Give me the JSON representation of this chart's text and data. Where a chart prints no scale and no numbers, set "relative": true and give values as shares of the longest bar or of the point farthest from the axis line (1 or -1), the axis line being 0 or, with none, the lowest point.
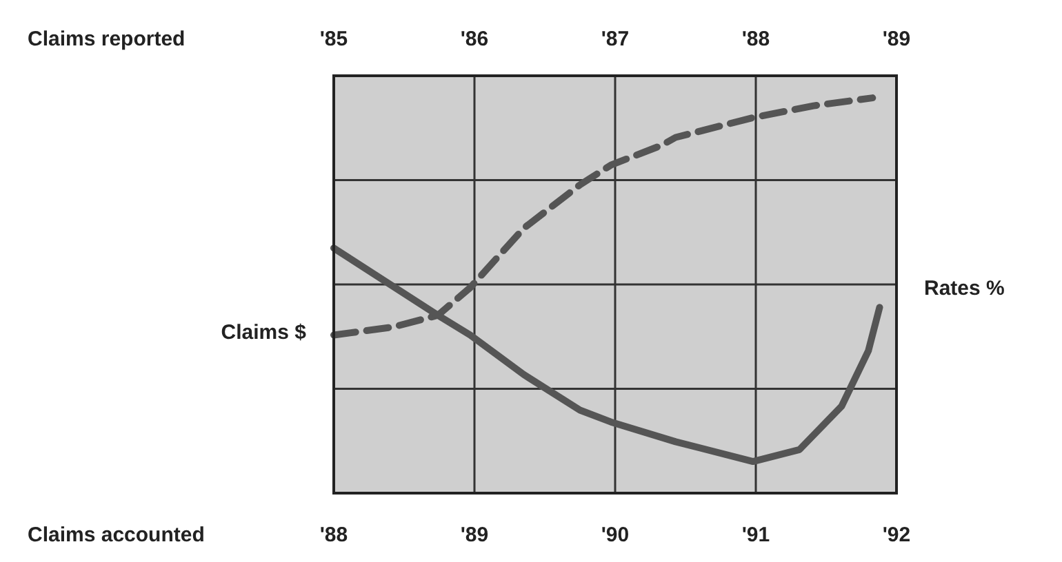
{
  "chart_data": {
    "type": "line",
    "relative": true,
    "annotations": [
      "Claims accounted"
    ],
    "x2label": "Claims reported",
    "ylabel": "Claims $",
    "y2label": "Rates %",
    "xlim": [
      1988,
      1992
    ],
    "xticks": [
      {
        "value": 1988,
        "label": "'88"
      },
      {
        "value": 1989,
        "label": "'89"
      },
      {
        "value": 1990,
        "label": "'90"
      },
      {
        "value": 1991,
        "label": "'91"
      },
      {
        "value": 1992,
        "label": "'92"
      }
    ],
    "x2lim": [
      1985,
      1989
    ],
    "x2ticks": [
      {
        "value": 1985,
        "label": "'85"
      },
      {
        "value": 1986,
        "label": "'86"
      },
      {
        "value": 1987,
        "label": "'87"
      },
      {
        "value": 1988,
        "label": "'88"
      },
      {
        "value": 1989,
        "label": "'89"
      }
    ],
    "grid": true,
    "marker": "none",
    "series": [
      {
        "color": "#555555",
        "line_style": "dashed",
        "x": [
          1988,
          1988.42,
          1988.74,
          1988.97,
          1989.35,
          1989.75,
          1989.97,
          1990.33,
          1990.43,
          1990.98,
          1991.41,
          1991.83
        ],
        "values": [
          0.4,
          0.42,
          0.45,
          0.52,
          0.67,
          0.78,
          0.83,
          0.88,
          0.9,
          0.95,
          0.98,
          1
        ]
      },
      {
        "color": "#555555",
        "line_style": "solid",
        "x": [
          1988,
          1988.74,
          1988.97,
          1989.35,
          1989.75,
          1989.97,
          1990.43,
          1990.98,
          1991.31,
          1991.61,
          1991.8,
          1991.88
        ],
        "values": [
          0.62,
          0.45,
          0.4,
          0.3,
          0.21,
          0.18,
          0.13,
          0.08,
          0.11,
          0.22,
          0.36,
          0.47
        ]
      }
    ]
  }
}
